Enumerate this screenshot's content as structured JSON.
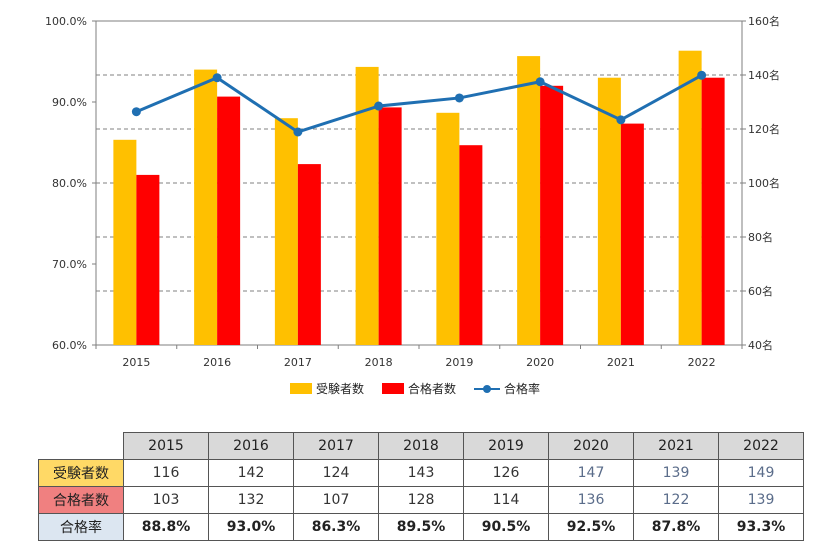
{
  "chart_data": {
    "type": "bar",
    "categories": [
      "2015",
      "2016",
      "2017",
      "2018",
      "2019",
      "2020",
      "2021",
      "2022"
    ],
    "series": [
      {
        "name": "受験者数",
        "kind": "bar",
        "axis": "right",
        "color": "#ffc000",
        "values": [
          116,
          142,
          124,
          143,
          126,
          147,
          139,
          149
        ]
      },
      {
        "name": "合格者数",
        "kind": "bar",
        "axis": "right",
        "color": "#ff0000",
        "values": [
          103,
          132,
          107,
          128,
          114,
          136,
          122,
          139
        ]
      },
      {
        "name": "合格率",
        "kind": "line",
        "axis": "left",
        "color": "#1f6fb2",
        "values": [
          88.8,
          93.0,
          86.3,
          89.5,
          90.5,
          92.5,
          87.8,
          93.3
        ]
      }
    ],
    "left_axis": {
      "min": 60,
      "max": 100,
      "ticks": [
        "60.0%",
        "70.0%",
        "80.0%",
        "90.0%",
        "100.0%"
      ]
    },
    "right_axis": {
      "min": 40,
      "max": 160,
      "ticks": [
        "40名",
        "60名",
        "80名",
        "100名",
        "120名",
        "140名",
        "160名"
      ]
    },
    "grid": "dashed-horizontal",
    "legend": "bottom"
  },
  "legend": {
    "applicants": "受験者数",
    "passers": "合格者数",
    "rate": "合格率"
  },
  "table": {
    "headers": [
      "2015",
      "2016",
      "2017",
      "2018",
      "2019",
      "2020",
      "2021",
      "2022"
    ],
    "rows": [
      {
        "label": "受験者数",
        "color": "#ffd966",
        "values": [
          "116",
          "142",
          "124",
          "143",
          "126",
          "147",
          "139",
          "149"
        ]
      },
      {
        "label": "合格者数",
        "color": "#f08080",
        "values": [
          "103",
          "132",
          "107",
          "128",
          "114",
          "136",
          "122",
          "139"
        ]
      },
      {
        "label": "合格率",
        "color": "#dce6f1",
        "values": [
          "88.8%",
          "93.0%",
          "86.3%",
          "89.5%",
          "90.5%",
          "92.5%",
          "87.8%",
          "93.3%"
        ]
      }
    ]
  }
}
